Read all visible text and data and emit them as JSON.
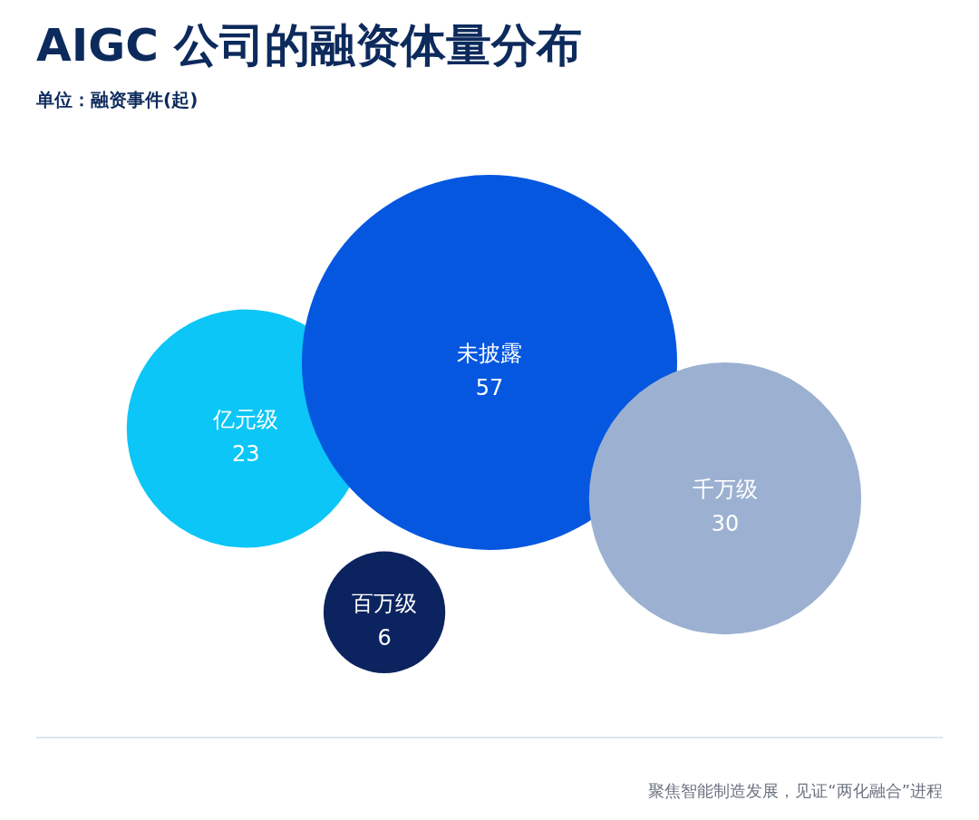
{
  "chart_data": {
    "type": "other",
    "title": "AIGC 公司的融资体量分布",
    "subtitle": "单位：融资事件(起)",
    "categories": [
      "亿元级",
      "未披露",
      "千万级",
      "百万级"
    ],
    "values": [
      23,
      57,
      30,
      6
    ],
    "colors": [
      "#0bc6f7",
      "#0557e0",
      "#9cb1d1",
      "#0b235f"
    ],
    "data_labels": true,
    "annotations": [
      "聚焦智能制造发展，见证“两化融合”进程"
    ]
  }
}
